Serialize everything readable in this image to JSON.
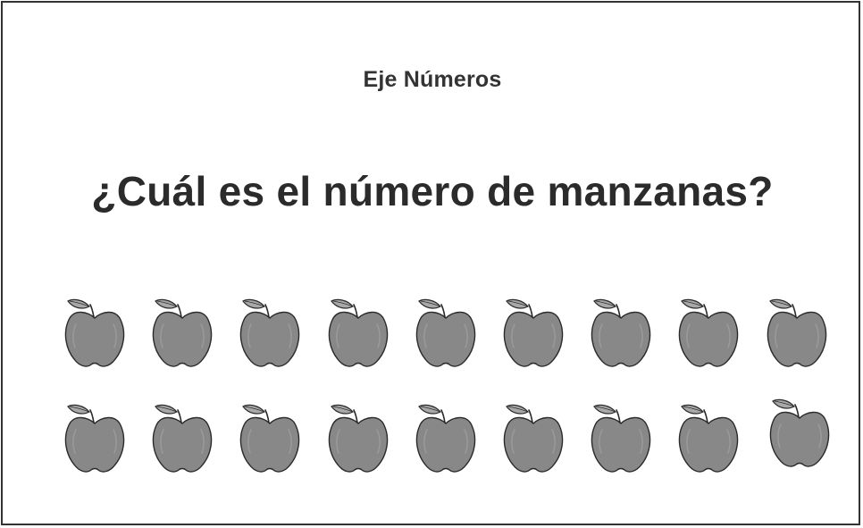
{
  "header": {
    "subtitle": "Eje Números",
    "question": "¿Cuál es el número de manzanas?"
  },
  "apples": {
    "icon": "apple-icon",
    "rows": [
      9,
      9
    ],
    "fill_color": "#888888",
    "outline_color": "#2a2a2a"
  }
}
